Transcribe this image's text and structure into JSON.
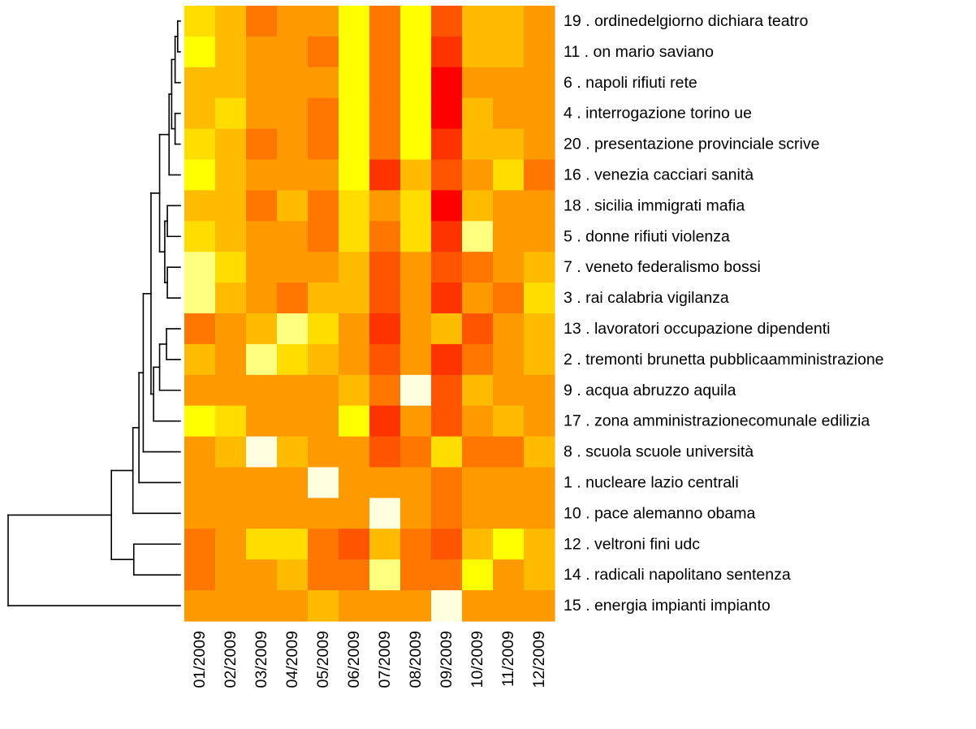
{
  "chart_data": {
    "type": "heatmap",
    "columns": [
      "01/2009",
      "02/2009",
      "03/2009",
      "04/2009",
      "05/2009",
      "06/2009",
      "07/2009",
      "08/2009",
      "09/2009",
      "10/2009",
      "11/2009",
      "12/2009"
    ],
    "rows": [
      "19 . ordinedelgiorno dichiara teatro",
      "11 . on mario saviano",
      "6 . napoli rifiuti rete",
      "4 . interrogazione torino ue",
      "20 . presentazione provinciale scrive",
      "16 . venezia cacciari sanità",
      "18 . sicilia immigrati mafia",
      "5 . donne rifiuti violenza",
      "7 . veneto federalismo bossi",
      "3 . rai calabria vigilanza",
      "13 . lavoratori occupazione dipendenti",
      "2 . tremonti brunetta pubblicaamministrazione",
      "9 . acqua abruzzo aquila",
      "17 . zona amministrazionecomunale edilizia",
      "8 . scuola scuole università",
      "1 . nucleare lazio centrali",
      "10 . pace alemanno obama",
      "12 . veltroni fini udc",
      "14 . radicali napolitano sentenza",
      "15 . energia impianti impianto"
    ],
    "color_scale": [
      "#FF0000",
      "#FF3300",
      "#FF5500",
      "#FF7700",
      "#FF9900",
      "#FFBB00",
      "#FFDD00",
      "#FFFF00",
      "#FFFF80",
      "#FFFFE0"
    ],
    "values": [
      [
        6,
        5,
        3,
        4,
        4,
        7,
        3,
        7,
        2,
        5,
        5,
        4
      ],
      [
        7,
        5,
        4,
        4,
        3,
        7,
        3,
        7,
        1,
        5,
        5,
        4
      ],
      [
        5,
        5,
        4,
        4,
        4,
        7,
        3,
        7,
        0,
        4,
        4,
        4
      ],
      [
        5,
        6,
        4,
        4,
        3,
        7,
        3,
        7,
        0,
        5,
        4,
        4
      ],
      [
        6,
        5,
        3,
        4,
        3,
        7,
        3,
        7,
        1,
        5,
        5,
        4
      ],
      [
        7,
        5,
        4,
        4,
        4,
        7,
        1,
        5,
        2,
        4,
        6,
        3
      ],
      [
        5,
        5,
        3,
        5,
        3,
        6,
        4,
        6,
        0,
        5,
        4,
        4
      ],
      [
        6,
        5,
        4,
        4,
        3,
        6,
        3,
        6,
        1,
        8,
        4,
        4
      ],
      [
        8,
        6,
        4,
        4,
        4,
        5,
        2,
        4,
        2,
        3,
        4,
        5
      ],
      [
        8,
        5,
        4,
        3,
        5,
        5,
        2,
        4,
        1,
        4,
        3,
        6
      ],
      [
        3,
        4,
        5,
        8,
        6,
        4,
        1,
        4,
        5,
        2,
        4,
        5
      ],
      [
        5,
        4,
        8,
        6,
        5,
        4,
        2,
        4,
        1,
        3,
        4,
        5
      ],
      [
        4,
        4,
        4,
        4,
        4,
        5,
        3,
        9,
        2,
        5,
        4,
        4
      ],
      [
        7,
        6,
        4,
        4,
        4,
        7,
        1,
        4,
        2,
        4,
        5,
        4
      ],
      [
        4,
        5,
        9,
        5,
        4,
        4,
        2,
        3,
        6,
        3,
        3,
        5
      ],
      [
        4,
        4,
        4,
        4,
        9,
        4,
        4,
        4,
        3,
        4,
        4,
        4
      ],
      [
        4,
        4,
        4,
        4,
        4,
        4,
        9,
        4,
        3,
        4,
        4,
        4
      ],
      [
        3,
        4,
        6,
        6,
        3,
        2,
        5,
        3,
        2,
        5,
        7,
        5
      ],
      [
        3,
        4,
        4,
        5,
        3,
        3,
        8,
        3,
        3,
        7,
        4,
        5
      ],
      [
        4,
        4,
        4,
        4,
        5,
        4,
        4,
        4,
        9,
        4,
        4,
        4
      ]
    ],
    "dendrogram": {
      "leaves": [
        "19",
        "11",
        "6",
        "4",
        "20",
        "16",
        "18",
        "5",
        "7",
        "3",
        "13",
        "2",
        "9",
        "17",
        "8",
        "1",
        "10",
        "12",
        "14",
        "15"
      ],
      "merges": [
        [
          -1,
          -2,
          0.015
        ],
        [
          1,
          -3,
          0.03
        ],
        [
          -4,
          -5,
          0.03
        ],
        [
          2,
          3,
          0.05
        ],
        [
          4,
          -6,
          0.065
        ],
        [
          -7,
          -8,
          0.075
        ],
        [
          -9,
          -10,
          0.075
        ],
        [
          6,
          7,
          0.09
        ],
        [
          5,
          8,
          0.12
        ],
        [
          -11,
          -12,
          0.08
        ],
        [
          10,
          -13,
          0.12
        ],
        [
          11,
          -14,
          0.155
        ],
        [
          9,
          12,
          0.17
        ],
        [
          13,
          -15,
          0.215
        ],
        [
          14,
          -16,
          0.24
        ],
        [
          15,
          -17,
          0.275
        ],
        [
          -18,
          -19,
          0.27
        ],
        [
          16,
          17,
          0.4
        ],
        [
          18,
          -20,
          1.0
        ]
      ]
    }
  }
}
